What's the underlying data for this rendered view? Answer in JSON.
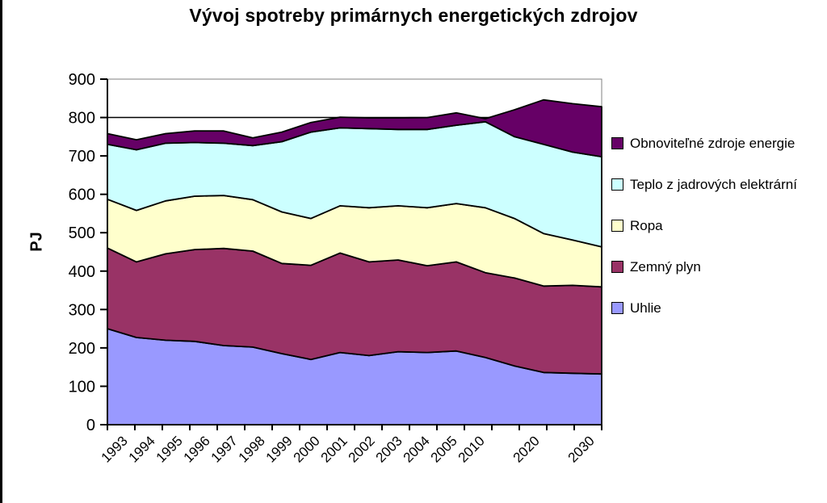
{
  "chart_data": {
    "type": "area",
    "stacked": true,
    "title": "Vývoj spotreby primárnych energetických zdrojov",
    "ylabel": "PJ",
    "xlabel": "",
    "ylim": [
      0,
      900
    ],
    "ytick_step": 100,
    "yticks": [
      0,
      100,
      200,
      300,
      400,
      500,
      600,
      700,
      800,
      900
    ],
    "grid_line_at": 800,
    "grid_on": false,
    "legend_position": "right",
    "axis_color": "#000000",
    "plot_border_color": "#808080",
    "categories": [
      "1993",
      "1994",
      "1995",
      "1996",
      "1997",
      "1998",
      "1999",
      "2000",
      "2001",
      "2002",
      "2003",
      "2004",
      "2005",
      "2010",
      "",
      "2020",
      "",
      "2030"
    ],
    "series": [
      {
        "name": "Uhlie",
        "color": "#9999FF",
        "values": [
          250,
          227,
          220,
          217,
          206,
          202,
          185,
          170,
          188,
          180,
          190,
          188,
          192,
          175,
          153,
          136,
          134,
          132
        ]
      },
      {
        "name": "Zemný plyn",
        "color": "#993366",
        "values": [
          210,
          197,
          225,
          239,
          253,
          250,
          235,
          245,
          259,
          244,
          239,
          226,
          232,
          221,
          229,
          225,
          229,
          227
        ]
      },
      {
        "name": "Ropa",
        "color": "#FFFFCC",
        "values": [
          127,
          134,
          138,
          139,
          138,
          134,
          134,
          122,
          123,
          141,
          141,
          151,
          152,
          169,
          155,
          137,
          118,
          104
        ]
      },
      {
        "name": "Teplo z jadrových elektrární",
        "color": "#CCFFFF",
        "values": [
          143,
          158,
          150,
          140,
          136,
          141,
          183,
          225,
          203,
          206,
          199,
          204,
          204,
          224,
          213,
          232,
          229,
          235
        ]
      },
      {
        "name": "Obnoviteľné zdroje energie",
        "color": "#660066",
        "values": [
          28,
          26,
          25,
          30,
          32,
          20,
          25,
          25,
          28,
          28,
          30,
          31,
          32,
          8,
          70,
          116,
          126,
          130
        ]
      }
    ],
    "legend_order": [
      "Obnoviteľné zdroje energie",
      "Teplo z jadrových elektrární",
      "Ropa",
      "Zemný plyn",
      "Uhlie"
    ]
  }
}
